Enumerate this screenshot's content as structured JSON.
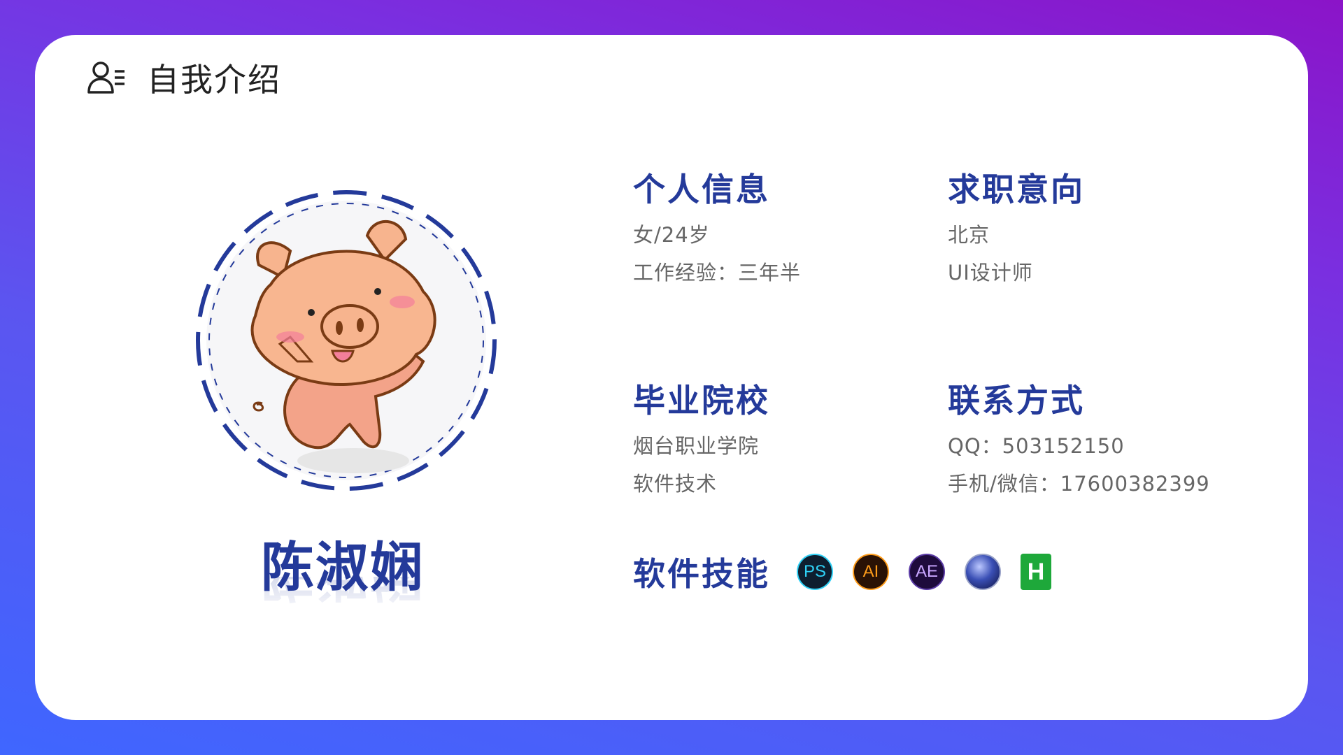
{
  "header": {
    "title": "自我介绍",
    "icon": "user-list-icon"
  },
  "profile": {
    "name": "陈淑娴",
    "avatar_icon": "cartoon-pig-avatar"
  },
  "personal_info": {
    "title": "个人信息",
    "lines": [
      "女/24岁",
      "工作经验：三年半"
    ]
  },
  "job_intention": {
    "title": "求职意向",
    "lines": [
      "北京",
      "UI设计师"
    ]
  },
  "school": {
    "title": "毕业院校",
    "lines": [
      "烟台职业学院",
      "软件技术"
    ]
  },
  "contact": {
    "title": "联系方式",
    "lines": [
      "QQ：503152150",
      "手机/微信：17600382399"
    ]
  },
  "skills": {
    "title": "软件技能",
    "items": [
      {
        "icon": "photoshop-icon",
        "label": "PS"
      },
      {
        "icon": "illustrator-icon",
        "label": "AI"
      },
      {
        "icon": "after-effects-icon",
        "label": "AE"
      },
      {
        "icon": "cinema4d-icon",
        "label": ""
      },
      {
        "icon": "html5-icon",
        "label": "H"
      }
    ]
  },
  "colors": {
    "accent": "#243a9a",
    "text_gray": "#666666",
    "bg_start": "#3f66ff",
    "bg_end": "#8b14c8"
  }
}
